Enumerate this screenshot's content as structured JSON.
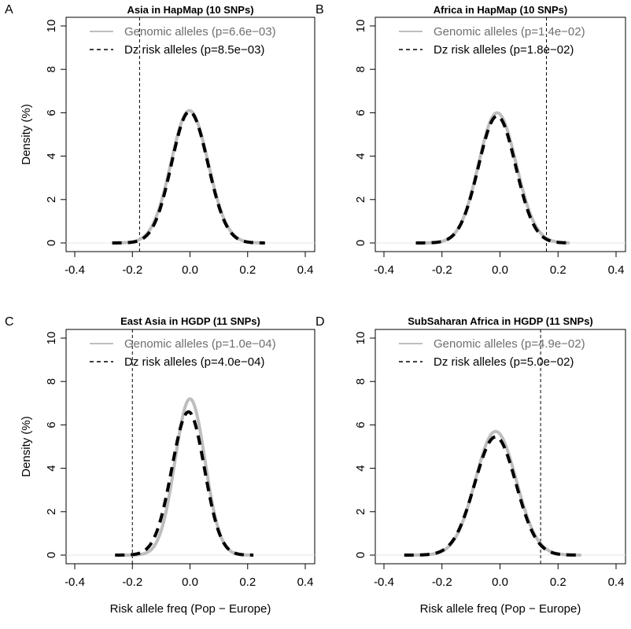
{
  "figure": {
    "xlabel": "Risk allele freq (Pop − Europe)",
    "ylabel": "Density (%)"
  },
  "chart_data": [
    {
      "type": "line",
      "panel": "A",
      "title": "Asia in HapMap (10 SNPs)",
      "xlim": [
        -0.4,
        0.4
      ],
      "ylim": [
        0,
        10
      ],
      "x_ticks": [
        -0.4,
        -0.2,
        0.0,
        0.2,
        0.4
      ],
      "x_tick_labels": [
        "-0.4",
        "-0.2",
        "0.0",
        "0.2",
        "0.4"
      ],
      "y_ticks": [
        0,
        2,
        4,
        6,
        8,
        10
      ],
      "y_tick_labels": [
        "0",
        "2",
        "4",
        "6",
        "8",
        "10"
      ],
      "legend_position": "top",
      "vline": -0.175,
      "series": [
        {
          "name": "Genomic alleles (p=6.6e−03)",
          "color": "#bebebe",
          "style": "solid",
          "mu": -0.002,
          "peak": 6.1,
          "sigma_left": 0.064,
          "sigma_right": 0.065,
          "x_range": [
            -0.27,
            0.26
          ]
        },
        {
          "name": "Dz risk alleles (p=8.5e−03)",
          "color": "#000000",
          "style": "dashed",
          "mu": -0.002,
          "peak": 6.05,
          "sigma_left": 0.062,
          "sigma_right": 0.064,
          "x_range": [
            -0.27,
            0.26
          ]
        }
      ]
    },
    {
      "type": "line",
      "panel": "B",
      "title": "Africa in HapMap (10 SNPs)",
      "xlim": [
        -0.4,
        0.4
      ],
      "ylim": [
        0,
        10
      ],
      "x_ticks": [
        -0.4,
        -0.2,
        0.0,
        0.2,
        0.4
      ],
      "x_tick_labels": [
        "-0.4",
        "-0.2",
        "0.0",
        "0.2",
        "0.4"
      ],
      "y_ticks": [
        0,
        2,
        4,
        6,
        8,
        10
      ],
      "y_tick_labels": [
        "0",
        "2",
        "4",
        "6",
        "8",
        "10"
      ],
      "legend_position": "top",
      "vline": 0.16,
      "series": [
        {
          "name": "Genomic alleles (p=1.4e−02)",
          "color": "#bebebe",
          "style": "solid",
          "mu": -0.01,
          "peak": 6.0,
          "sigma_left": 0.064,
          "sigma_right": 0.066,
          "x_range": [
            -0.29,
            0.24
          ]
        },
        {
          "name": "Dz risk alleles (p=1.8e−02)",
          "color": "#000000",
          "style": "dashed",
          "mu": -0.01,
          "peak": 5.85,
          "sigma_left": 0.064,
          "sigma_right": 0.064,
          "x_range": [
            -0.29,
            0.24
          ]
        }
      ]
    },
    {
      "type": "line",
      "panel": "C",
      "title": "East Asia in HGDP (11 SNPs)",
      "xlim": [
        -0.4,
        0.4
      ],
      "ylim": [
        0,
        10
      ],
      "x_ticks": [
        -0.4,
        -0.2,
        0.0,
        0.2,
        0.4
      ],
      "x_tick_labels": [
        "-0.4",
        "-0.2",
        "0.0",
        "0.2",
        "0.4"
      ],
      "y_ticks": [
        0,
        2,
        4,
        6,
        8,
        10
      ],
      "y_tick_labels": [
        "0",
        "2",
        "4",
        "6",
        "8",
        "10"
      ],
      "legend_position": "top",
      "vline": -0.2,
      "series": [
        {
          "name": "Genomic alleles (p=1.0e−04)",
          "color": "#bebebe",
          "style": "solid",
          "mu": 0.0,
          "peak": 7.2,
          "sigma_left": 0.052,
          "sigma_right": 0.052,
          "x_range": [
            -0.26,
            0.22
          ]
        },
        {
          "name": "Dz risk alleles (p=4.0e−04)",
          "color": "#000000",
          "style": "dashed",
          "mu": -0.005,
          "peak": 6.6,
          "sigma_left": 0.058,
          "sigma_right": 0.055,
          "x_range": [
            -0.26,
            0.22
          ]
        }
      ]
    },
    {
      "type": "line",
      "panel": "D",
      "title": "SubSaharan Africa in HGDP (11 SNPs)",
      "xlim": [
        -0.4,
        0.4
      ],
      "ylim": [
        0,
        10
      ],
      "x_ticks": [
        -0.4,
        -0.2,
        0.0,
        0.2,
        0.4
      ],
      "x_tick_labels": [
        "-0.4",
        "-0.2",
        "0.0",
        "0.2",
        "0.4"
      ],
      "y_ticks": [
        0,
        2,
        4,
        6,
        8,
        10
      ],
      "y_tick_labels": [
        "0",
        "2",
        "4",
        "6",
        "8",
        "10"
      ],
      "legend_position": "top",
      "vline": 0.14,
      "series": [
        {
          "name": "Genomic alleles (p=4.9e−02)",
          "color": "#bebebe",
          "style": "solid",
          "mu": -0.015,
          "peak": 5.7,
          "sigma_left": 0.07,
          "sigma_right": 0.071,
          "x_range": [
            -0.33,
            0.28
          ]
        },
        {
          "name": "Dz risk alleles (p=5.0e−02)",
          "color": "#000000",
          "style": "dashed",
          "mu": -0.015,
          "peak": 5.45,
          "sigma_left": 0.072,
          "sigma_right": 0.07,
          "x_range": [
            -0.33,
            0.28
          ]
        }
      ]
    }
  ]
}
